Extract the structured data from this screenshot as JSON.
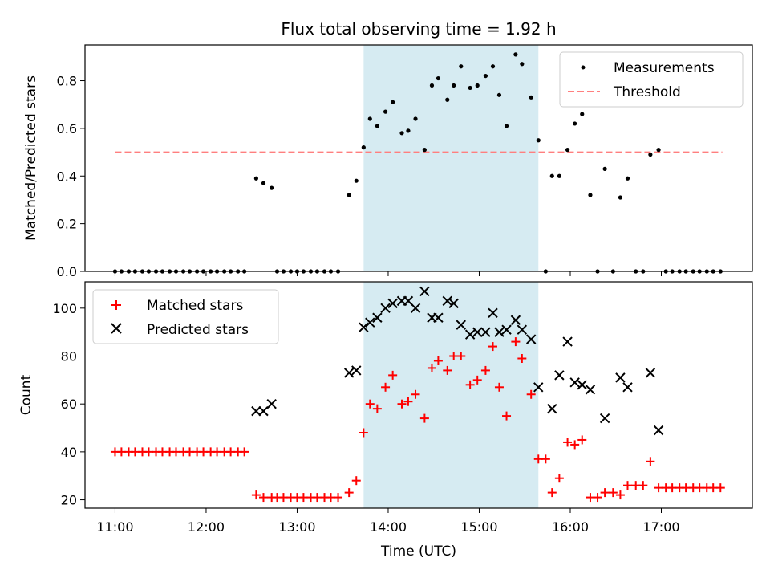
{
  "chart_data": {
    "type": "scatter",
    "title": "Flux total observing time = 1.92 h",
    "xlabel": "Time (UTC)",
    "x_unit": "hours UTC",
    "xlim": [
      10.67,
      18.0
    ],
    "x_ticks": [
      {
        "value": 11,
        "label": "11:00"
      },
      {
        "value": 12,
        "label": "12:00"
      },
      {
        "value": 13,
        "label": "13:00"
      },
      {
        "value": 14,
        "label": "14:00"
      },
      {
        "value": 15,
        "label": "15:00"
      },
      {
        "value": 16,
        "label": "16:00"
      },
      {
        "value": 17,
        "label": "17:00"
      }
    ],
    "highlight_span": {
      "x_start": 13.73,
      "x_end": 15.65,
      "color": "#add8e6"
    },
    "top": {
      "ylabel": "Matched/Predicted stars",
      "ylim": [
        0,
        0.95
      ],
      "y_ticks": [
        {
          "value": 0,
          "label": "0.0"
        },
        {
          "value": 0.2,
          "label": "0.2"
        },
        {
          "value": 0.4,
          "label": "0.4"
        },
        {
          "value": 0.6,
          "label": "0.6"
        },
        {
          "value": 0.8,
          "label": "0.8"
        }
      ],
      "threshold": {
        "name": "Threshold",
        "value": 0.5,
        "x_range": [
          11.0,
          17.67
        ],
        "color": "#ff7f7f"
      },
      "measurements": {
        "name": "Measurements",
        "color": "#000000",
        "points": [
          [
            11.0,
            0
          ],
          [
            11.07,
            0
          ],
          [
            11.15,
            0
          ],
          [
            11.22,
            0
          ],
          [
            11.3,
            0
          ],
          [
            11.37,
            0
          ],
          [
            11.45,
            0
          ],
          [
            11.52,
            0
          ],
          [
            11.6,
            0
          ],
          [
            11.67,
            0
          ],
          [
            11.75,
            0
          ],
          [
            11.82,
            0
          ],
          [
            11.9,
            0
          ],
          [
            11.97,
            0
          ],
          [
            12.05,
            0
          ],
          [
            12.12,
            0
          ],
          [
            12.2,
            0
          ],
          [
            12.27,
            0
          ],
          [
            12.35,
            0
          ],
          [
            12.42,
            0
          ],
          [
            12.55,
            0.39
          ],
          [
            12.63,
            0.37
          ],
          [
            12.72,
            0.35
          ],
          [
            12.78,
            0
          ],
          [
            12.85,
            0
          ],
          [
            12.93,
            0
          ],
          [
            13.0,
            0
          ],
          [
            13.07,
            0
          ],
          [
            13.15,
            0
          ],
          [
            13.22,
            0
          ],
          [
            13.3,
            0
          ],
          [
            13.37,
            0
          ],
          [
            13.45,
            0
          ],
          [
            13.57,
            0.32
          ],
          [
            13.65,
            0.38
          ],
          [
            13.73,
            0.52
          ],
          [
            13.8,
            0.64
          ],
          [
            13.88,
            0.61
          ],
          [
            13.97,
            0.67
          ],
          [
            14.05,
            0.71
          ],
          [
            14.15,
            0.58
          ],
          [
            14.22,
            0.59
          ],
          [
            14.3,
            0.64
          ],
          [
            14.4,
            0.51
          ],
          [
            14.48,
            0.78
          ],
          [
            14.55,
            0.81
          ],
          [
            14.65,
            0.72
          ],
          [
            14.72,
            0.78
          ],
          [
            14.8,
            0.86
          ],
          [
            14.9,
            0.77
          ],
          [
            14.98,
            0.78
          ],
          [
            15.07,
            0.82
          ],
          [
            15.15,
            0.86
          ],
          [
            15.22,
            0.74
          ],
          [
            15.3,
            0.61
          ],
          [
            15.4,
            0.91
          ],
          [
            15.47,
            0.87
          ],
          [
            15.57,
            0.73
          ],
          [
            15.65,
            0.55
          ],
          [
            15.73,
            0
          ],
          [
            15.8,
            0.4
          ],
          [
            15.88,
            0.4
          ],
          [
            15.97,
            0.51
          ],
          [
            16.05,
            0.62
          ],
          [
            16.13,
            0.66
          ],
          [
            16.22,
            0.32
          ],
          [
            16.3,
            0
          ],
          [
            16.38,
            0.43
          ],
          [
            16.47,
            0
          ],
          [
            16.55,
            0.31
          ],
          [
            16.63,
            0.39
          ],
          [
            16.72,
            0
          ],
          [
            16.8,
            0
          ],
          [
            16.88,
            0.49
          ],
          [
            16.97,
            0.51
          ],
          [
            17.05,
            0
          ],
          [
            17.12,
            0
          ],
          [
            17.2,
            0
          ],
          [
            17.27,
            0
          ],
          [
            17.35,
            0
          ],
          [
            17.42,
            0
          ],
          [
            17.5,
            0
          ],
          [
            17.57,
            0
          ],
          [
            17.65,
            0
          ]
        ]
      }
    },
    "bottom": {
      "ylabel": "Count",
      "ylim": [
        16.5,
        111
      ],
      "y_ticks": [
        {
          "value": 20,
          "label": "20"
        },
        {
          "value": 40,
          "label": "40"
        },
        {
          "value": 60,
          "label": "60"
        },
        {
          "value": 80,
          "label": "80"
        },
        {
          "value": 100,
          "label": "100"
        }
      ],
      "series": [
        {
          "name": "Matched stars",
          "marker": "+",
          "color": "#ff0000",
          "points": [
            [
              11.0,
              40
            ],
            [
              11.07,
              40
            ],
            [
              11.15,
              40
            ],
            [
              11.22,
              40
            ],
            [
              11.3,
              40
            ],
            [
              11.37,
              40
            ],
            [
              11.45,
              40
            ],
            [
              11.52,
              40
            ],
            [
              11.6,
              40
            ],
            [
              11.67,
              40
            ],
            [
              11.75,
              40
            ],
            [
              11.82,
              40
            ],
            [
              11.9,
              40
            ],
            [
              11.97,
              40
            ],
            [
              12.05,
              40
            ],
            [
              12.12,
              40
            ],
            [
              12.2,
              40
            ],
            [
              12.27,
              40
            ],
            [
              12.35,
              40
            ],
            [
              12.42,
              40
            ],
            [
              12.55,
              22
            ],
            [
              12.63,
              21
            ],
            [
              12.72,
              21
            ],
            [
              12.78,
              21
            ],
            [
              12.85,
              21
            ],
            [
              12.93,
              21
            ],
            [
              13.0,
              21
            ],
            [
              13.07,
              21
            ],
            [
              13.15,
              21
            ],
            [
              13.22,
              21
            ],
            [
              13.3,
              21
            ],
            [
              13.37,
              21
            ],
            [
              13.45,
              21
            ],
            [
              13.57,
              23
            ],
            [
              13.65,
              28
            ],
            [
              13.73,
              48
            ],
            [
              13.8,
              60
            ],
            [
              13.88,
              58
            ],
            [
              13.97,
              67
            ],
            [
              14.05,
              72
            ],
            [
              14.15,
              60
            ],
            [
              14.22,
              61
            ],
            [
              14.3,
              64
            ],
            [
              14.4,
              54
            ],
            [
              14.48,
              75
            ],
            [
              14.55,
              78
            ],
            [
              14.65,
              74
            ],
            [
              14.72,
              80
            ],
            [
              14.8,
              80
            ],
            [
              14.9,
              68
            ],
            [
              14.98,
              70
            ],
            [
              15.07,
              74
            ],
            [
              15.15,
              84
            ],
            [
              15.22,
              67
            ],
            [
              15.3,
              55
            ],
            [
              15.4,
              86
            ],
            [
              15.47,
              79
            ],
            [
              15.57,
              64
            ],
            [
              15.65,
              37
            ],
            [
              15.73,
              37
            ],
            [
              15.8,
              23
            ],
            [
              15.88,
              29
            ],
            [
              15.97,
              44
            ],
            [
              16.05,
              43
            ],
            [
              16.13,
              45
            ],
            [
              16.22,
              21
            ],
            [
              16.3,
              21
            ],
            [
              16.38,
              23
            ],
            [
              16.47,
              23
            ],
            [
              16.55,
              22
            ],
            [
              16.63,
              26
            ],
            [
              16.72,
              26
            ],
            [
              16.8,
              26
            ],
            [
              16.88,
              36
            ],
            [
              16.97,
              25
            ],
            [
              17.05,
              25
            ],
            [
              17.12,
              25
            ],
            [
              17.2,
              25
            ],
            [
              17.27,
              25
            ],
            [
              17.35,
              25
            ],
            [
              17.42,
              25
            ],
            [
              17.5,
              25
            ],
            [
              17.57,
              25
            ],
            [
              17.65,
              25
            ]
          ]
        },
        {
          "name": "Predicted stars",
          "marker": "x",
          "color": "#000000",
          "points": [
            [
              12.55,
              57
            ],
            [
              12.63,
              57
            ],
            [
              12.72,
              60
            ],
            [
              13.57,
              73
            ],
            [
              13.65,
              74
            ],
            [
              13.73,
              92
            ],
            [
              13.8,
              94
            ],
            [
              13.88,
              96
            ],
            [
              13.97,
              100
            ],
            [
              14.05,
              102
            ],
            [
              14.15,
              103
            ],
            [
              14.22,
              103
            ],
            [
              14.3,
              100
            ],
            [
              14.4,
              107
            ],
            [
              14.48,
              96
            ],
            [
              14.55,
              96
            ],
            [
              14.65,
              103
            ],
            [
              14.72,
              102
            ],
            [
              14.8,
              93
            ],
            [
              14.9,
              89
            ],
            [
              14.98,
              90
            ],
            [
              15.07,
              90
            ],
            [
              15.15,
              98
            ],
            [
              15.22,
              90
            ],
            [
              15.3,
              91
            ],
            [
              15.4,
              95
            ],
            [
              15.47,
              91
            ],
            [
              15.57,
              87
            ],
            [
              15.65,
              67
            ],
            [
              15.8,
              58
            ],
            [
              15.88,
              72
            ],
            [
              15.97,
              86
            ],
            [
              16.05,
              69
            ],
            [
              16.13,
              68
            ],
            [
              16.22,
              66
            ],
            [
              16.38,
              54
            ],
            [
              16.55,
              71
            ],
            [
              16.63,
              67
            ],
            [
              16.88,
              73
            ],
            [
              16.97,
              49
            ]
          ]
        }
      ]
    }
  }
}
